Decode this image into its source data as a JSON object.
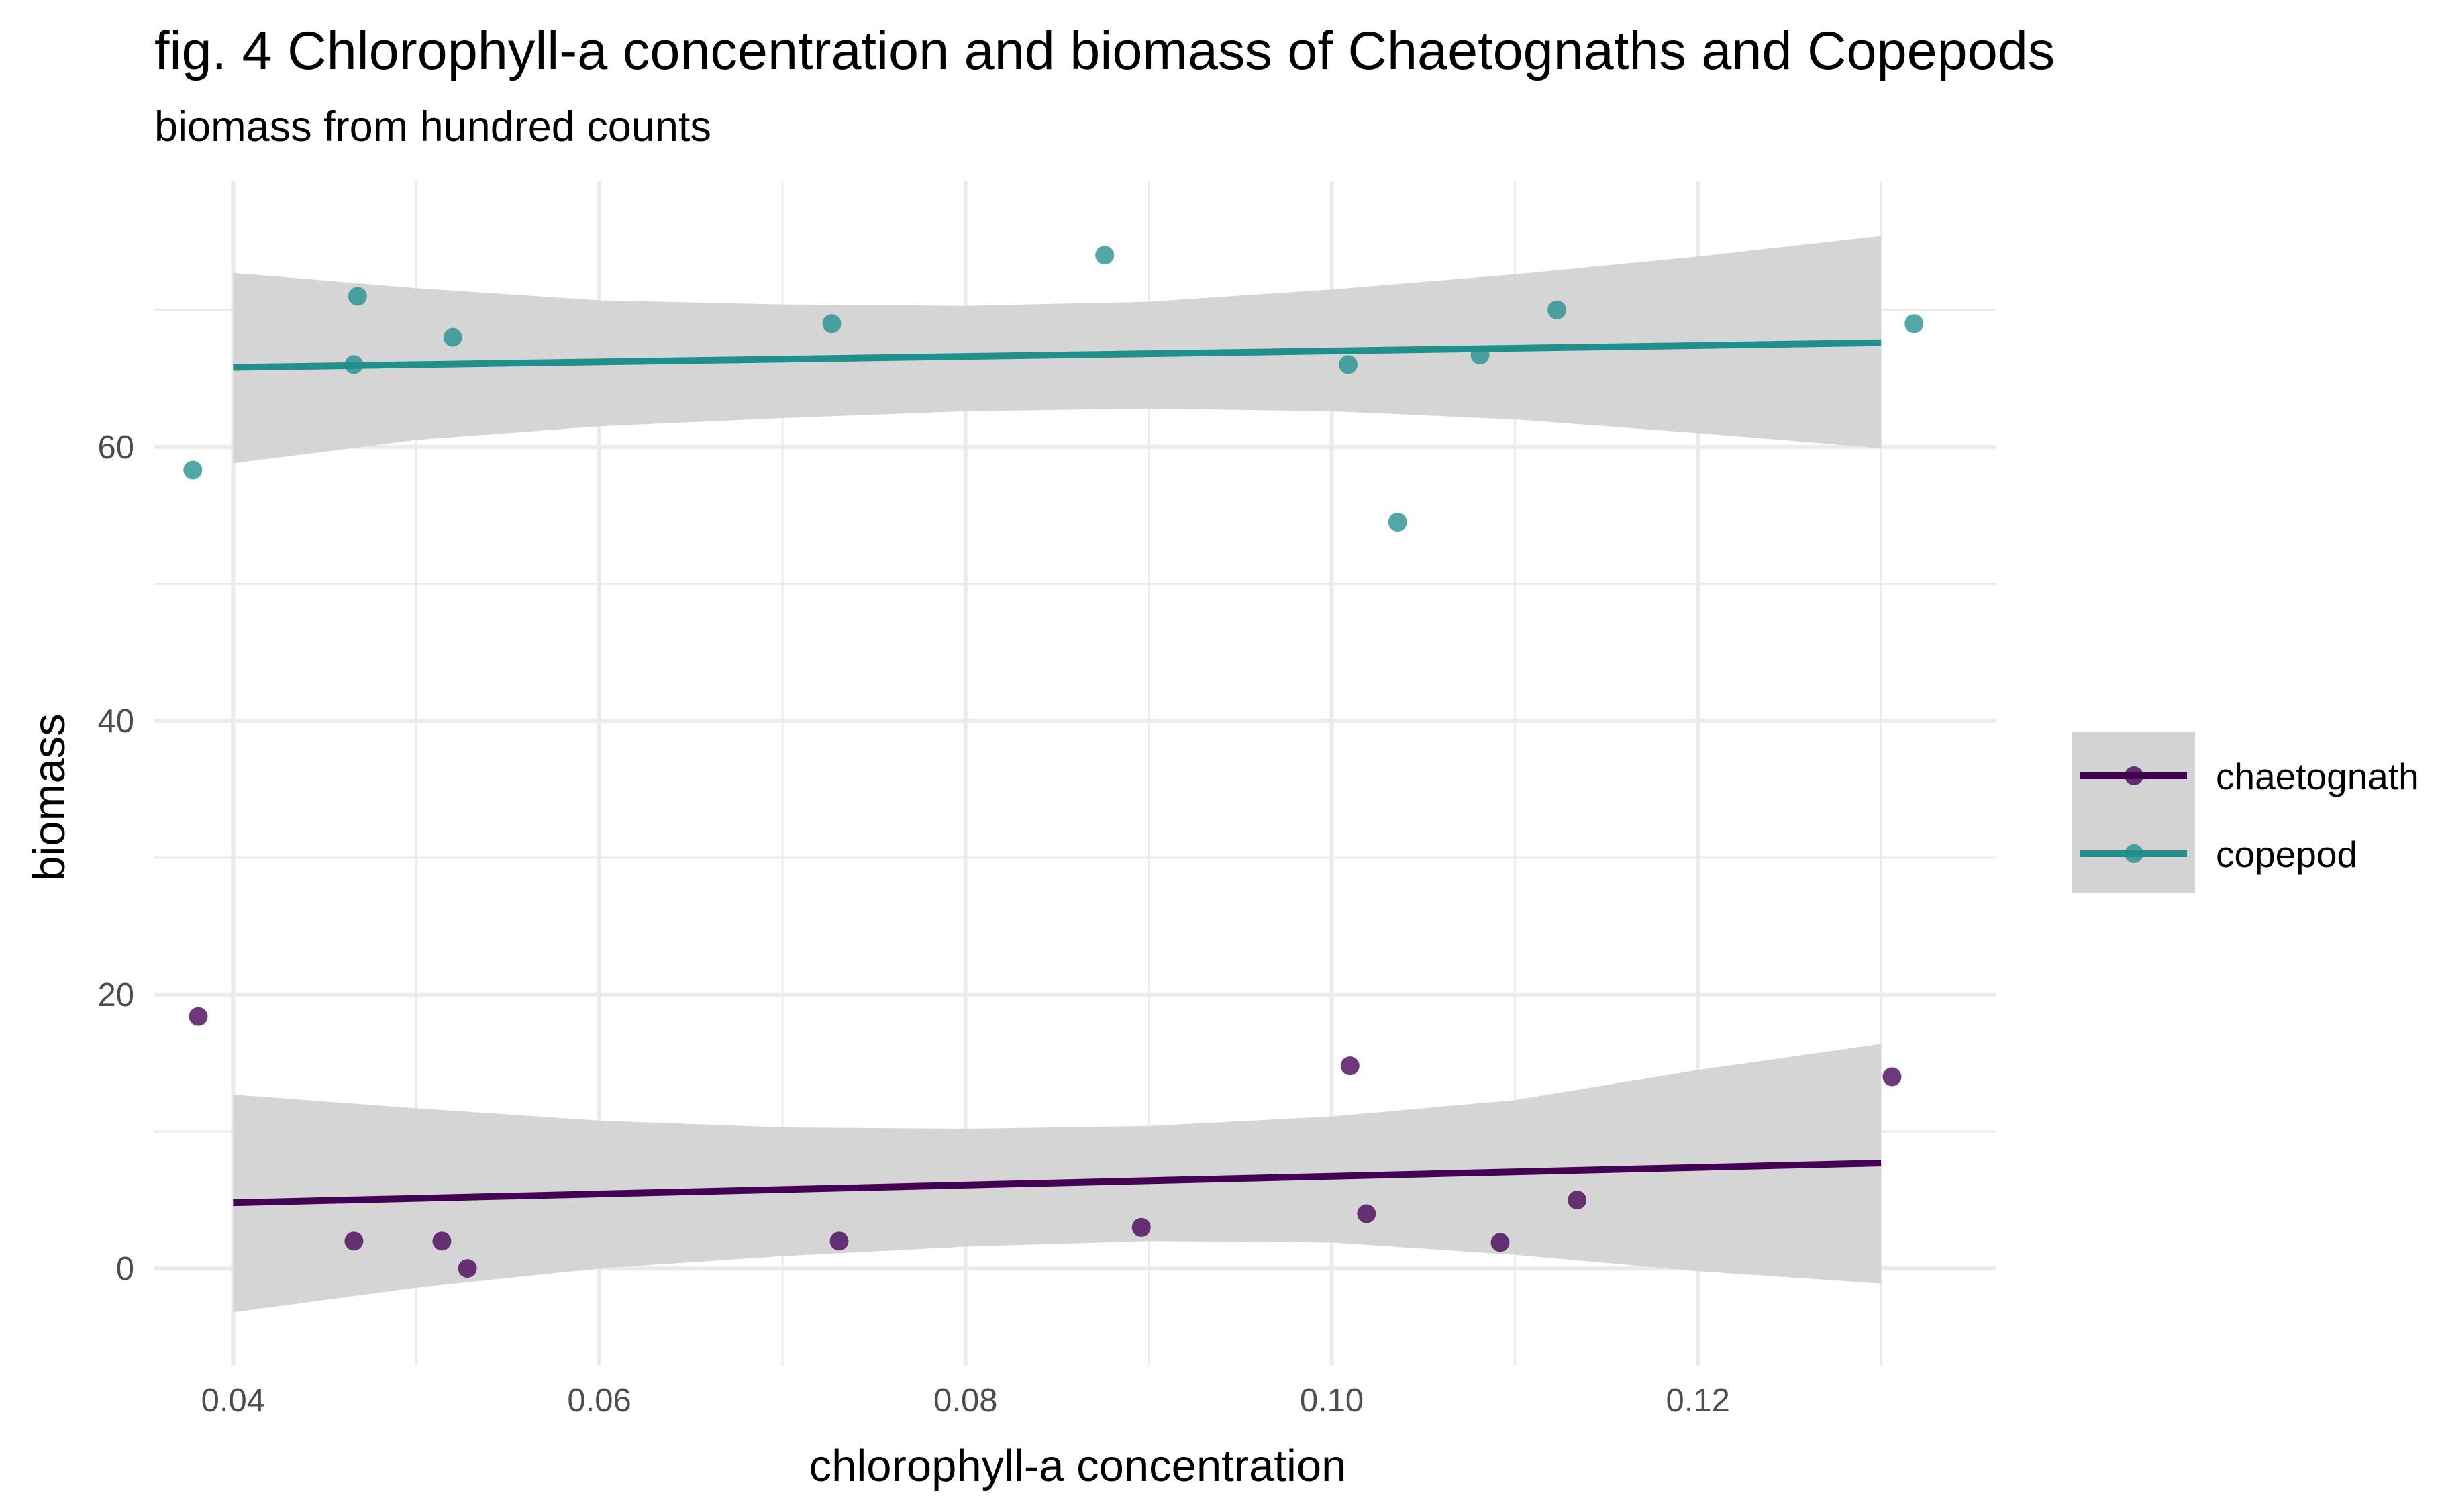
{
  "chart_data": {
    "type": "scatter",
    "title": "fig. 4 Chlorophyll-a concentration and biomass of Chaetognaths and Copepods",
    "subtitle": "biomass from hundred counts",
    "xlabel": "chlorophyll-a concentration",
    "ylabel": "biomass",
    "xlim": [
      0.0357,
      0.1363
    ],
    "ylim": [
      -7.1,
      79.4
    ],
    "x_ticks": [
      0.04,
      0.06,
      0.08,
      0.1,
      0.12
    ],
    "x_tick_labels": [
      "0.04",
      "0.06",
      "0.08",
      "0.10",
      "0.12"
    ],
    "x_minor_ticks": [
      0.05,
      0.07,
      0.09,
      0.11,
      0.13
    ],
    "y_ticks": [
      0,
      20,
      40,
      60
    ],
    "y_tick_labels": [
      "0",
      "20",
      "40",
      "60"
    ],
    "y_minor_ticks": [
      10,
      30,
      50,
      70
    ],
    "grid": true,
    "legend": {
      "position": "right",
      "title": "",
      "entries": [
        "chaetognath",
        "copepod"
      ]
    },
    "series": [
      {
        "name": "chaetognath",
        "color": "#440154",
        "points": [
          {
            "x": 0.0381,
            "y": 18.4
          },
          {
            "x": 0.0466,
            "y": 2.0
          },
          {
            "x": 0.0514,
            "y": 2.0
          },
          {
            "x": 0.0528,
            "y": 0.0
          },
          {
            "x": 0.0731,
            "y": 2.0
          },
          {
            "x": 0.0896,
            "y": 3.0
          },
          {
            "x": 0.101,
            "y": 14.8
          },
          {
            "x": 0.1019,
            "y": 4.0
          },
          {
            "x": 0.1092,
            "y": 1.9
          },
          {
            "x": 0.1134,
            "y": 5.0
          },
          {
            "x": 0.1306,
            "y": 14.0
          }
        ],
        "fit": {
          "method": "linear",
          "x": [
            0.04,
            0.05,
            0.06,
            0.07,
            0.08,
            0.09,
            0.1,
            0.11,
            0.12,
            0.13
          ],
          "y": [
            4.8,
            5.1,
            5.4,
            5.7,
            6.0,
            6.4,
            6.7,
            7.0,
            7.4,
            7.7
          ],
          "ci_low": [
            -3.2,
            -1.4,
            0.0,
            0.9,
            1.6,
            2.0,
            1.9,
            1.0,
            -0.2,
            -1.1
          ],
          "ci_high": [
            12.7,
            11.7,
            10.8,
            10.3,
            10.2,
            10.4,
            11.1,
            12.3,
            14.5,
            16.4
          ]
        }
      },
      {
        "name": "copepod",
        "color": "#21908d",
        "points": [
          {
            "x": 0.0378,
            "y": 58.3
          },
          {
            "x": 0.0466,
            "y": 66.0
          },
          {
            "x": 0.0468,
            "y": 71.0
          },
          {
            "x": 0.052,
            "y": 68.0
          },
          {
            "x": 0.0727,
            "y": 69.0
          },
          {
            "x": 0.0876,
            "y": 74.0
          },
          {
            "x": 0.1009,
            "y": 66.0
          },
          {
            "x": 0.1036,
            "y": 54.5
          },
          {
            "x": 0.1081,
            "y": 66.7
          },
          {
            "x": 0.1123,
            "y": 70.0
          },
          {
            "x": 0.1318,
            "y": 69.0
          }
        ],
        "fit": {
          "method": "linear",
          "x": [
            0.04,
            0.05,
            0.06,
            0.07,
            0.08,
            0.09,
            0.1,
            0.11,
            0.12,
            0.13
          ],
          "y": [
            65.8,
            66.0,
            66.2,
            66.4,
            66.6,
            66.8,
            67.0,
            67.2,
            67.4,
            67.6
          ],
          "ci_low": [
            58.8,
            60.5,
            61.5,
            62.1,
            62.6,
            62.8,
            62.6,
            62.0,
            61.0,
            59.9
          ],
          "ci_high": [
            72.7,
            71.6,
            70.7,
            70.4,
            70.3,
            70.6,
            71.5,
            72.6,
            73.9,
            75.4
          ]
        }
      }
    ],
    "ci_band_color": "#d3d3d3"
  }
}
